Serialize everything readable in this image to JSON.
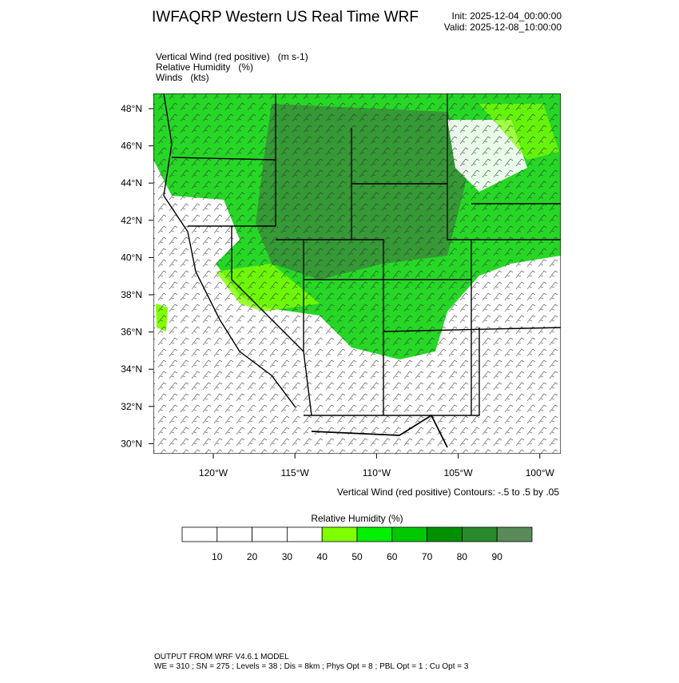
{
  "header": {
    "title": "IWFAQRP Western US Real Time WRF",
    "init": "Init: 2025-12-04_00:00:00",
    "valid": "Valid: 2025-12-08_10:00:00"
  },
  "fields": [
    "Vertical Wind (red positive)   (m s-1)",
    "Relative Humidity   (%)",
    "Winds   (kts)"
  ],
  "map": {
    "lat_labels": [
      "48°N",
      "46°N",
      "44°N",
      "42°N",
      "40°N",
      "38°N",
      "36°N",
      "34°N",
      "32°N",
      "30°N"
    ],
    "lon_labels": [
      "120°W",
      "115°W",
      "110°W",
      "105°W",
      "100°W"
    ],
    "contour_note": "Vertical Wind (red positive) Contours: -.5 to .5 by .05"
  },
  "colorbar": {
    "title": "Relative Humidity  (%)",
    "ticks": [
      10,
      20,
      30,
      40,
      50,
      60,
      70,
      80,
      90
    ],
    "colors": [
      "#ffffff",
      "#ffffff",
      "#ffffff",
      "#ffffff",
      "#80ff00",
      "#00f000",
      "#00c800",
      "#009000",
      "#2a8a2a",
      "#5a8a5a"
    ]
  },
  "footer": {
    "line1": "OUTPUT FROM WRF V4.6.1 MODEL",
    "line2": "WE = 310 ; SN = 275 ; Levels = 38 ; Dis = 8km ; Phys Opt = 8 ; PBL Opt = 1 ; Cu Opt = 3"
  }
}
